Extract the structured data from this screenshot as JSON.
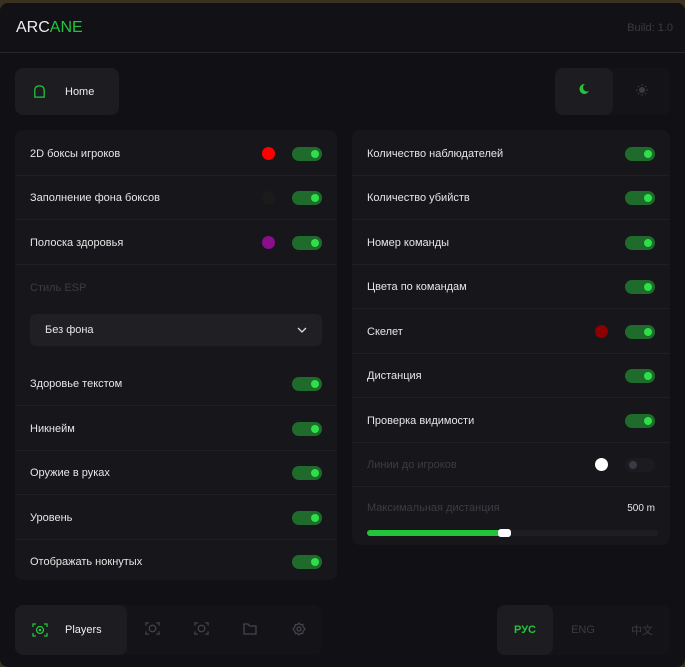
{
  "header": {
    "logo_a": "ARC",
    "logo_b": "ANE",
    "build": "Build: 1.0"
  },
  "nav": {
    "home": "Home",
    "players": "Players"
  },
  "theme": {
    "dark": "moon-icon",
    "light": "sun-icon",
    "active": "dark"
  },
  "colors": {
    "accent": "#22c43a",
    "box_color": "#ff0000",
    "fill_color": "#1b1b1b",
    "health_color": "#8b0e8b",
    "skeleton_color": "#8b0000",
    "lines_color": "#ffffff"
  },
  "left": {
    "box2d": "2D боксы игроков",
    "box_fill": "Заполнение фона боксов",
    "health_bar": "Полоска здоровья",
    "esp_style_label": "Стиль ESP",
    "esp_style_value": "Без фона",
    "health_text": "Здоровье текстом",
    "nickname": "Никнейм",
    "weapon": "Оружие в руках",
    "level": "Уровень",
    "show_knocked": "Отображать нокнутых"
  },
  "right": {
    "spectators": "Количество наблюдателей",
    "kills": "Количество убийств",
    "team_number": "Номер команды",
    "team_colors": "Цвета по командам",
    "skeleton": "Скелет",
    "distance": "Дистанция",
    "visibility": "Проверка видимости",
    "lines": "Линии до игроков",
    "max_distance_label": "Максимальная дистанция",
    "max_distance_value": "500 m",
    "max_distance_percent": 47
  },
  "lang": {
    "ru": "РУС",
    "en": "ENG",
    "zh": "中文",
    "active": "ru"
  }
}
